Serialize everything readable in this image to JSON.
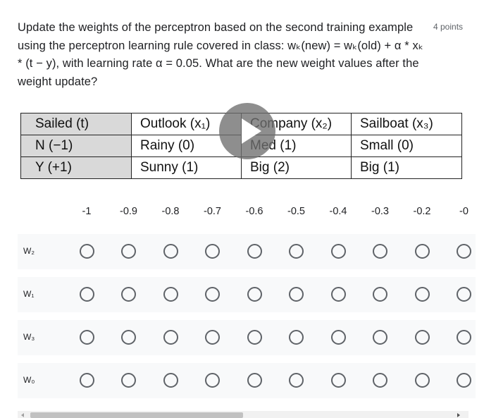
{
  "question": {
    "text": "Update the weights of the perceptron based on the second training example using the perceptron learning rule covered in class: wₖ(new) = wₖ(old) + α * xₖ * (t − y), with learning rate α = 0.05. What are the new weight values after the weight update?",
    "points": "4 points"
  },
  "table": {
    "rows": [
      [
        "Sailed (t)",
        "Outlook (x₁)",
        "Company (x₂)",
        "Sailboat (x₃)"
      ],
      [
        "N (−1)",
        "Rainy (0)",
        "Med (1)",
        "Small (0)"
      ],
      [
        "Y (+1)",
        "Sunny (1)",
        "Big (2)",
        "Big (1)"
      ]
    ]
  },
  "grid": {
    "columns": [
      "-1",
      "-0.9",
      "-0.8",
      "-0.7",
      "-0.6",
      "-0.5",
      "-0.4",
      "-0.3",
      "-0.2",
      "-0"
    ],
    "rows": [
      {
        "label": "W₂"
      },
      {
        "label": "W₁"
      },
      {
        "label": "W₃"
      },
      {
        "label": "W₀"
      }
    ]
  },
  "icons": {
    "play": "play-icon"
  },
  "colors": {
    "radio_border": "#5f6368",
    "row_bg": "#f8f9fa",
    "table_header_bg": "#d9d9d9"
  }
}
